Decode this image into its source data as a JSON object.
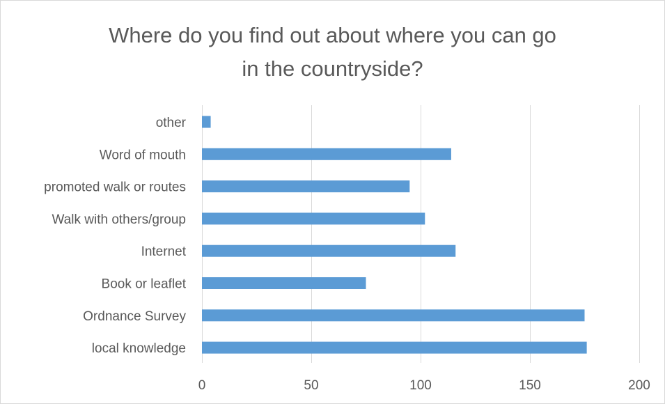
{
  "chart_data": {
    "type": "bar",
    "orientation": "horizontal",
    "title": "Where do you find out about where you can go in the countryside?",
    "title_lines": [
      "Where do you find out about where you can go",
      "in the countryside?"
    ],
    "categories": [
      "other",
      "Word of mouth",
      "promoted walk or routes",
      "Walk with others/group",
      "Internet",
      "Book or leaflet",
      "Ordnance Survey",
      "local knowledge"
    ],
    "values": [
      4,
      114,
      95,
      102,
      116,
      75,
      175,
      176
    ],
    "xlim": [
      0,
      200
    ],
    "xticks": [
      0,
      50,
      100,
      150,
      200
    ],
    "xlabel": "",
    "ylabel": "",
    "grid": "vertical",
    "legend": "none",
    "bar_color": "#5b9bd5",
    "grid_color": "#d9d9d9",
    "text_color": "#595959"
  }
}
